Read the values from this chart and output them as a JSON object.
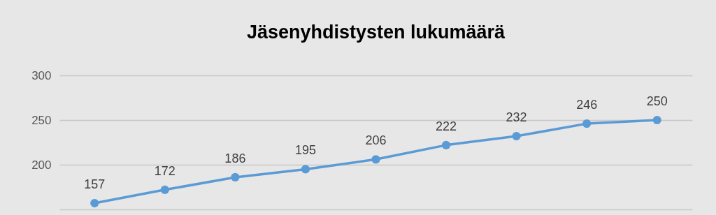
{
  "chart_data": {
    "type": "line",
    "title": "Jäsenyhdistysten lukumäärä",
    "categories": [
      null,
      null,
      null,
      null,
      null,
      null,
      null,
      null,
      null
    ],
    "series": [
      {
        "color": "#5b9bd5",
        "values": [
          157,
          172,
          186,
          195,
          206,
          222,
          232,
          246,
          250
        ]
      }
    ],
    "ylim": [
      150,
      300
    ],
    "yticks": [
      200,
      250,
      300
    ],
    "grid": "y",
    "tick_labels": "y",
    "data_labels": true,
    "marker": "circle",
    "line_style": "solid"
  }
}
